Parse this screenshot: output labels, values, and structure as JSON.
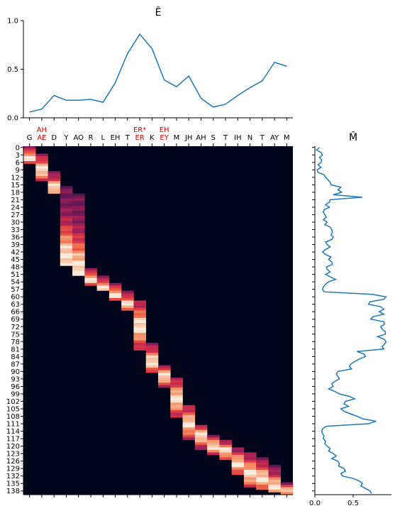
{
  "chart_data": [
    {
      "type": "line",
      "title": "Ê",
      "ylim": [
        0,
        1
      ],
      "yticks": [
        "0.0",
        "0.5",
        "1.0"
      ],
      "x": [
        0,
        1,
        2,
        3,
        4,
        5,
        6,
        7,
        8,
        9,
        10,
        11,
        12,
        13,
        14,
        15,
        16,
        17,
        18,
        19,
        20,
        21
      ],
      "values": [
        0.06,
        0.09,
        0.23,
        0.18,
        0.18,
        0.19,
        0.16,
        0.36,
        0.66,
        0.86,
        0.71,
        0.39,
        0.32,
        0.43,
        0.2,
        0.11,
        0.14,
        0.23,
        0.31,
        0.38,
        0.57,
        0.53
      ],
      "color": "#1f77b4"
    },
    {
      "type": "heatmap",
      "tokens_top": [
        "G",
        "AE",
        "D",
        "Y",
        "AO",
        "R",
        "L",
        "EH",
        "T",
        "ER",
        "K",
        "EY",
        "M",
        "JH",
        "AH",
        "S",
        "T",
        "IH",
        "N",
        "T",
        "AY",
        "M"
      ],
      "tokens_red": [
        "",
        "AH",
        "",
        "",
        "",
        "",
        "",
        "",
        "",
        "ER*",
        "",
        "EH",
        "",
        "",
        "",
        "",
        "",
        "",
        "",
        "",
        "",
        ""
      ],
      "row_ticks": [
        0,
        3,
        6,
        9,
        12,
        15,
        18,
        21,
        24,
        27,
        30,
        33,
        36,
        39,
        42,
        45,
        48,
        51,
        54,
        57,
        60,
        63,
        66,
        69,
        72,
        75,
        78,
        81,
        84,
        87,
        90,
        93,
        96,
        99,
        102,
        105,
        108,
        111,
        114,
        117,
        120,
        123,
        126,
        129,
        132,
        135,
        138
      ],
      "n_rows": 140,
      "colormap": "rocket",
      "alignment": [
        {
          "col": 0,
          "start": 0,
          "end": 7,
          "peak": 4
        },
        {
          "col": 1,
          "start": 3,
          "end": 14,
          "peak": 9
        },
        {
          "col": 2,
          "start": 10,
          "end": 19,
          "peak": 16
        },
        {
          "col": 3,
          "start": 16,
          "end": 48,
          "peak": 44
        },
        {
          "col": 4,
          "start": 19,
          "end": 52,
          "peak": 49
        },
        {
          "col": 5,
          "start": 49,
          "end": 56,
          "peak": 53
        },
        {
          "col": 6,
          "start": 52,
          "end": 58,
          "peak": 56
        },
        {
          "col": 7,
          "start": 55,
          "end": 62,
          "peak": 59
        },
        {
          "col": 8,
          "start": 58,
          "end": 66,
          "peak": 63
        },
        {
          "col": 9,
          "start": 62,
          "end": 82,
          "peak": 72
        },
        {
          "col": 10,
          "start": 79,
          "end": 91,
          "peak": 86
        },
        {
          "col": 11,
          "start": 88,
          "end": 97,
          "peak": 92
        },
        {
          "col": 12,
          "start": 93,
          "end": 109,
          "peak": 101
        },
        {
          "col": 13,
          "start": 104,
          "end": 118,
          "peak": 111
        },
        {
          "col": 14,
          "start": 112,
          "end": 122,
          "peak": 116
        },
        {
          "col": 15,
          "start": 116,
          "end": 124,
          "peak": 120
        },
        {
          "col": 16,
          "start": 118,
          "end": 126,
          "peak": 122
        },
        {
          "col": 17,
          "start": 121,
          "end": 132,
          "peak": 127
        },
        {
          "col": 18,
          "start": 123,
          "end": 137,
          "peak": 131
        },
        {
          "col": 19,
          "start": 125,
          "end": 138,
          "peak": 133
        },
        {
          "col": 20,
          "start": 128,
          "end": 139,
          "peak": 136
        },
        {
          "col": 21,
          "start": 135,
          "end": 140,
          "peak": 138
        }
      ]
    },
    {
      "type": "line",
      "orientation": "vertical",
      "title": "M̂",
      "xlim": [
        0,
        1
      ],
      "xticks": [
        "0.0",
        "0.5"
      ],
      "values": [
        0.06,
        0.02,
        0.08,
        0.1,
        0.06,
        0.09,
        0.08,
        0.04,
        0.08,
        0.03,
        0.04,
        0.12,
        0.14,
        0.17,
        0.2,
        0.21,
        0.34,
        0.3,
        0.35,
        0.24,
        0.62,
        0.2,
        0.19,
        0.14,
        0.19,
        0.12,
        0.11,
        0.13,
        0.15,
        0.11,
        0.16,
        0.13,
        0.2,
        0.22,
        0.23,
        0.21,
        0.24,
        0.22,
        0.14,
        0.16,
        0.2,
        0.14,
        0.1,
        0.14,
        0.21,
        0.18,
        0.22,
        0.23,
        0.15,
        0.16,
        0.2,
        0.14,
        0.2,
        0.27,
        0.18,
        0.14,
        0.11,
        0.1,
        0.12,
        0.75,
        0.93,
        0.9,
        0.72,
        0.7,
        0.86,
        0.9,
        0.84,
        0.9,
        0.76,
        0.73,
        0.9,
        0.91,
        0.86,
        0.88,
        0.92,
        0.92,
        0.82,
        0.9,
        0.93,
        0.91,
        0.88,
        0.9,
        0.55,
        0.64,
        0.66,
        0.58,
        0.52,
        0.47,
        0.45,
        0.48,
        0.3,
        0.28,
        0.3,
        0.32,
        0.26,
        0.22,
        0.24,
        0.18,
        0.26,
        0.32,
        0.45,
        0.52,
        0.4,
        0.38,
        0.44,
        0.34,
        0.38,
        0.46,
        0.55,
        0.62,
        0.8,
        0.7,
        0.15,
        0.1,
        0.09,
        0.1,
        0.12,
        0.11,
        0.14,
        0.13,
        0.16,
        0.2,
        0.18,
        0.24,
        0.28,
        0.22,
        0.3,
        0.32,
        0.31,
        0.38,
        0.4,
        0.34,
        0.36,
        0.5,
        0.58,
        0.62,
        0.6,
        0.66,
        0.72,
        0.74
      ]
    }
  ]
}
